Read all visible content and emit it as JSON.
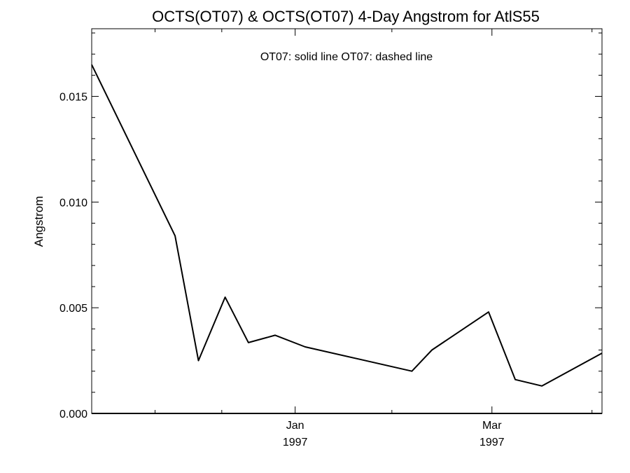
{
  "chart_data": {
    "type": "line",
    "title": "OCTS(OT07) & OCTS(OT07) 4-Day Angstrom for AtlS55",
    "annotation": "OT07: solid line   OT07: dashed line",
    "ylabel": "Angstrom",
    "xlabel": "",
    "xlim": [
      "1996-11-01",
      "1997-04-03"
    ],
    "ylim": [
      0.0,
      0.0182
    ],
    "y_ticks": [
      {
        "value": 0.0,
        "label": "0.000"
      },
      {
        "value": 0.005,
        "label": "0.005"
      },
      {
        "value": 0.01,
        "label": "0.010"
      },
      {
        "value": 0.015,
        "label": "0.015"
      }
    ],
    "x_ticks": [
      {
        "date": "1997-01-01",
        "month": "Jan",
        "year": "1997"
      },
      {
        "date": "1997-03-01",
        "month": "Mar",
        "year": "1997"
      }
    ],
    "x_minor_ticks": [
      "1996-11-20",
      "1996-12-10",
      "1997-01-30",
      "1997-03-31"
    ],
    "series": [
      {
        "name": "",
        "style": "solid",
        "color": "#000000",
        "points": [
          {
            "x": "1996-11-01",
            "y": 0.0165
          },
          {
            "x": "1996-11-26",
            "y": 0.0084
          },
          {
            "x": "1996-12-03",
            "y": 0.0025
          },
          {
            "x": "1996-12-11",
            "y": 0.0055
          },
          {
            "x": "1996-12-18",
            "y": 0.00335
          },
          {
            "x": "1996-12-26",
            "y": 0.0037
          },
          {
            "x": "1997-01-04",
            "y": 0.00315
          },
          {
            "x": "1997-02-05",
            "y": 0.002
          },
          {
            "x": "1997-02-11",
            "y": 0.003
          },
          {
            "x": "1997-02-28",
            "y": 0.0048
          },
          {
            "x": "1997-03-08",
            "y": 0.0016
          },
          {
            "x": "1997-03-16",
            "y": 0.0013
          },
          {
            "x": "1997-04-03",
            "y": 0.00285
          }
        ]
      },
      {
        "name": "",
        "style": "solid",
        "color": "#000000",
        "points": [
          {
            "x": "1996-11-01",
            "y": 0.0
          },
          {
            "x": "1997-04-03",
            "y": 0.0
          }
        ]
      }
    ],
    "grid": false
  }
}
